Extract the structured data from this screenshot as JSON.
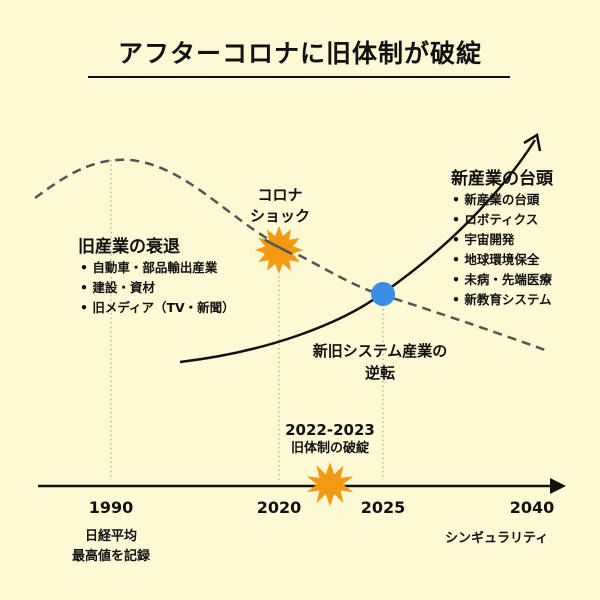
{
  "title": "アフターコロナに旧体制が破綻",
  "old_industry": {
    "heading": "旧産業の衰退",
    "items": [
      "自動車・部品輸出産業",
      "建設・資材",
      "旧メディア（TV・新聞）"
    ]
  },
  "new_industry": {
    "heading": "新産業の台頭",
    "items": [
      "新産業の台頭",
      "ロボティクス",
      "宇宙開発",
      "地球環境保全",
      "未病・先端医療",
      "新教育システム"
    ]
  },
  "corona_shock": {
    "line1": "コロナ",
    "line2": "ショック"
  },
  "reversal": {
    "line1": "新旧システム産業の",
    "line2": "逆転"
  },
  "collapse": {
    "years": "2022-2023",
    "label": "旧体制の破綻"
  },
  "timeline": {
    "years": [
      "1990",
      "2020",
      "2025",
      "2040"
    ],
    "note_1990_line1": "日経平均",
    "note_1990_line2": "最高値を記録",
    "note_2040": "シンギュラリティ"
  },
  "colors": {
    "background": "#fdf9d4",
    "ink": "#111111",
    "burst": "#f39a12",
    "crossing": "#3b8ee6",
    "dashed_curve": "#555555",
    "guide_lines": "#999999"
  }
}
